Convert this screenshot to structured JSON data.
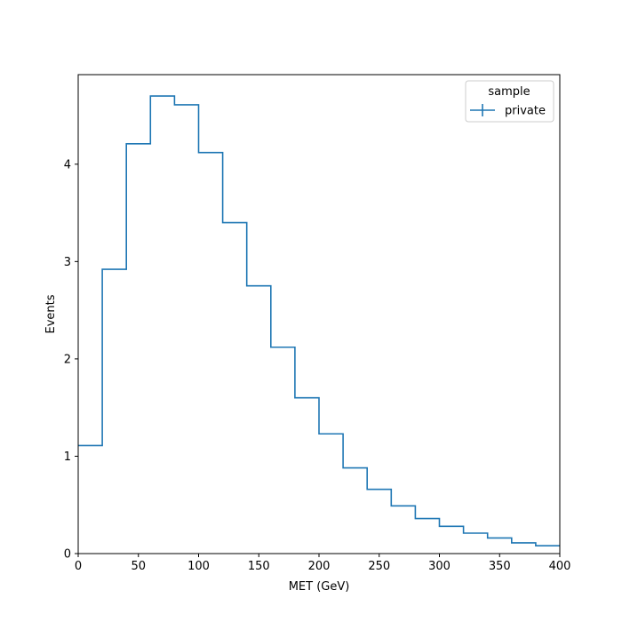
{
  "chart_data": {
    "type": "histogram",
    "xlabel": "MET (GeV)",
    "ylabel": "Events",
    "xlim": [
      0,
      400
    ],
    "ylim": [
      0,
      4.92
    ],
    "grid": false,
    "legend_placement": "top-right",
    "legend_title": "sample",
    "bin_edges": [
      0,
      20,
      40,
      60,
      80,
      100,
      120,
      140,
      160,
      180,
      200,
      220,
      240,
      260,
      280,
      300,
      320,
      340,
      360,
      380,
      400
    ],
    "series": [
      {
        "name": "private",
        "color": "#1f77b4",
        "values": [
          1.11,
          2.92,
          4.21,
          4.7,
          4.61,
          4.12,
          3.4,
          2.75,
          2.12,
          1.6,
          1.23,
          0.88,
          0.66,
          0.49,
          0.36,
          0.28,
          0.21,
          0.16,
          0.11,
          0.08
        ]
      }
    ],
    "x_ticks": [
      0,
      50,
      100,
      150,
      200,
      250,
      300,
      350,
      400
    ],
    "y_ticks": [
      0,
      1,
      2,
      3,
      4
    ]
  }
}
